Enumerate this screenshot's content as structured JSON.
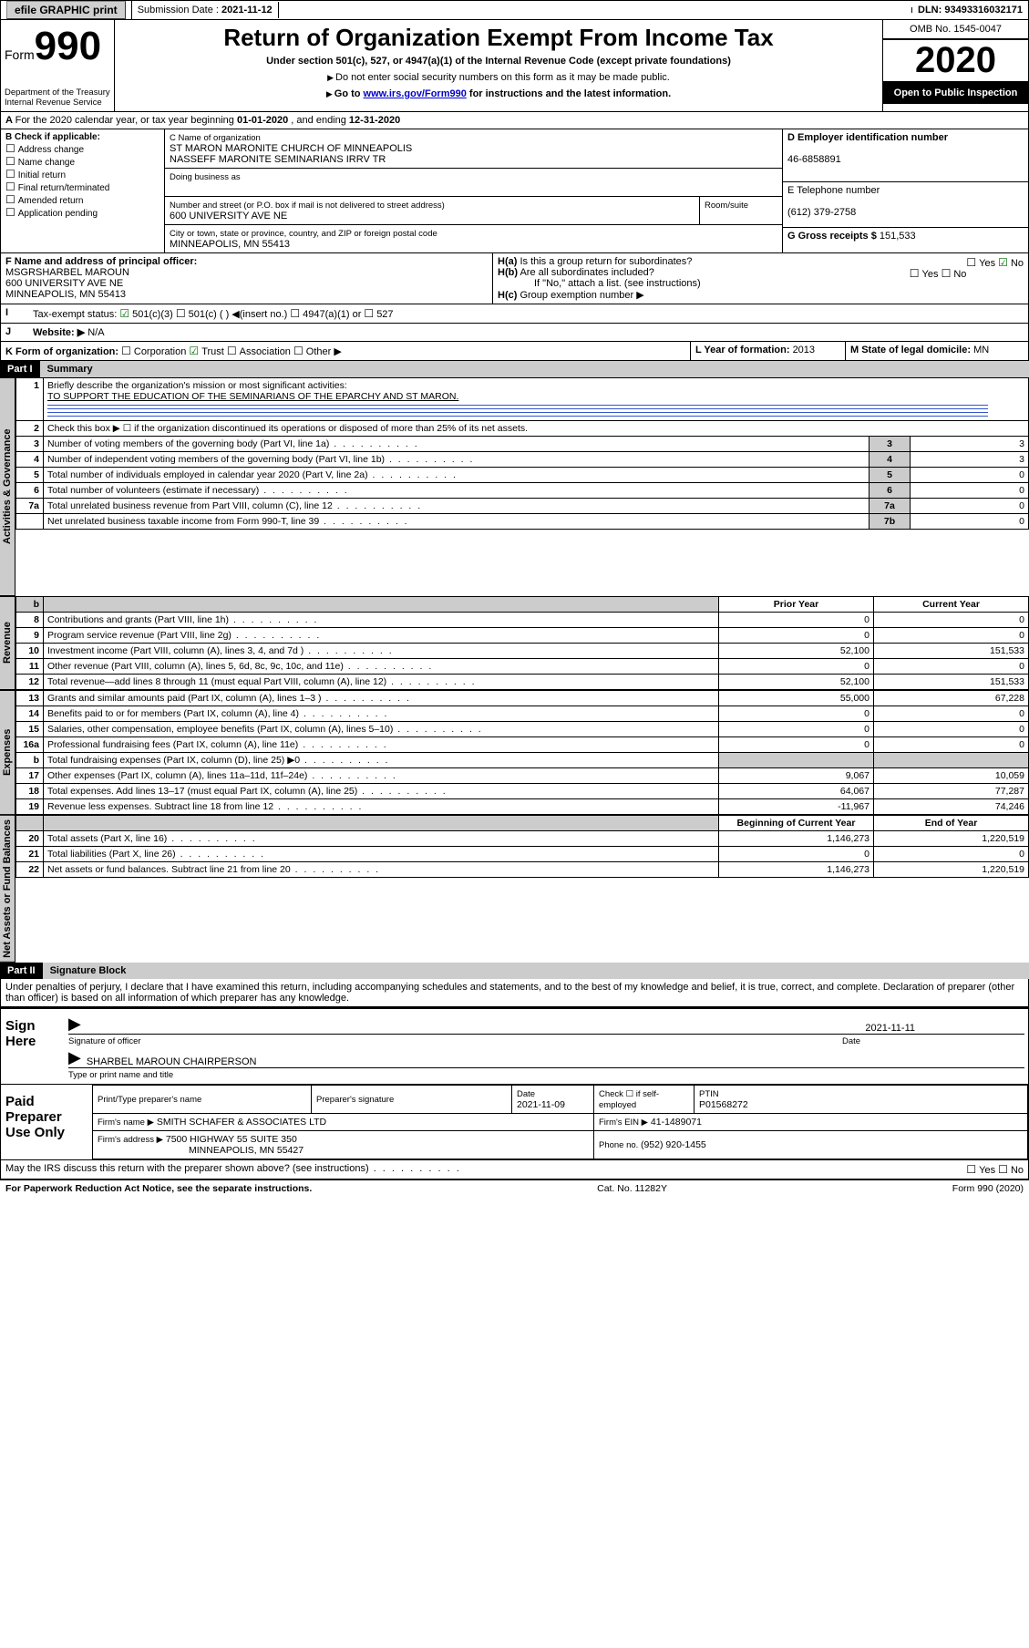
{
  "topbar": {
    "efile": "efile GRAPHIC print",
    "sub_label": "Submission Date : ",
    "sub_date": "2021-11-12",
    "dln_label": "DLN: ",
    "dln": "93493316032171"
  },
  "header": {
    "form_word": "Form",
    "form_num": "990",
    "dept1": "Department of the Treasury",
    "dept2": "Internal Revenue Service",
    "title": "Return of Organization Exempt From Income Tax",
    "sub1": "Under section 501(c), 527, or 4947(a)(1) of the Internal Revenue Code (except private foundations)",
    "sub2": "Do not enter social security numbers on this form as it may be made public.",
    "sub3a": "Go to ",
    "sub3_link": "www.irs.gov/Form990",
    "sub3b": " for instructions and the latest information.",
    "omb": "OMB No. 1545-0047",
    "year": "2020",
    "open": "Open to Public Inspection"
  },
  "line_a": {
    "text_a": "For the 2020 calendar year, or tax year beginning ",
    "begin": "01-01-2020",
    "text_b": " , and ending ",
    "end": "12-31-2020"
  },
  "box_b": {
    "title": "B Check if applicable:",
    "opts": [
      "Address change",
      "Name change",
      "Initial return",
      "Final return/terminated",
      "Amended return",
      "Application pending"
    ]
  },
  "box_c": {
    "label_name": "C Name of organization",
    "org1": "ST MARON MARONITE CHURCH OF MINNEAPOLIS",
    "org2": "NASSEFF MARONITE SEMINARIANS IRRV TR",
    "dba_label": "Doing business as",
    "addr_label": "Number and street (or P.O. box if mail is not delivered to street address)",
    "room_label": "Room/suite",
    "addr": "600 UNIVERSITY AVE NE",
    "city_label": "City or town, state or province, country, and ZIP or foreign postal code",
    "city": "MINNEAPOLIS, MN  55413"
  },
  "box_d": {
    "label": "D Employer identification number",
    "ein": "46-6858891"
  },
  "box_e": {
    "label": "E Telephone number",
    "phone": "(612) 379-2758"
  },
  "box_g": {
    "label": "G Gross receipts $ ",
    "amt": "151,533"
  },
  "box_f": {
    "label": "F Name and address of principal officer:",
    "l1": "MSGRSHARBEL MAROUN",
    "l2": "600 UNIVERSITY AVE NE",
    "l3": "MINNEAPOLIS, MN  55413"
  },
  "box_h": {
    "ha": "Is this a group return for subordinates?",
    "hb": "Are all subordinates included?",
    "hnote": "If \"No,\" attach a list. (see instructions)",
    "hc": "Group exemption number ▶",
    "yes": "Yes",
    "no": "No"
  },
  "box_i": {
    "label": "Tax-exempt status:",
    "o1": "501(c)(3)",
    "o2": "501(c) (  ) ◀(insert no.)",
    "o3": "4947(a)(1) or",
    "o4": "527"
  },
  "box_j": {
    "label": "Website: ▶",
    "val": "N/A"
  },
  "box_k": {
    "label": "K Form of organization:",
    "o1": "Corporation",
    "o2": "Trust",
    "o3": "Association",
    "o4": "Other ▶"
  },
  "box_l": {
    "label": "L Year of formation: ",
    "val": "2013"
  },
  "box_m": {
    "label": "M State of legal domicile: ",
    "val": "MN"
  },
  "part1": {
    "hdr": "Part I",
    "title": "Summary",
    "q1": "Briefly describe the organization's mission or most significant activities:",
    "q1ans": "TO SUPPORT THE EDUCATION OF THE SEMINARIANS OF THE EPARCHY AND ST MARON.",
    "q2": "Check this box ▶ ☐ if the organization discontinued its operations or disposed of more than 25% of its net assets.",
    "rows_gov": [
      {
        "n": "3",
        "d": "Number of voting members of the governing body (Part VI, line 1a)",
        "b": "3",
        "v": "3"
      },
      {
        "n": "4",
        "d": "Number of independent voting members of the governing body (Part VI, line 1b)",
        "b": "4",
        "v": "3"
      },
      {
        "n": "5",
        "d": "Total number of individuals employed in calendar year 2020 (Part V, line 2a)",
        "b": "5",
        "v": "0"
      },
      {
        "n": "6",
        "d": "Total number of volunteers (estimate if necessary)",
        "b": "6",
        "v": "0"
      },
      {
        "n": "7a",
        "d": "Total unrelated business revenue from Part VIII, column (C), line 12",
        "b": "7a",
        "v": "0"
      },
      {
        "n": "",
        "d": "Net unrelated business taxable income from Form 990-T, line 39",
        "b": "7b",
        "v": "0"
      }
    ],
    "col_py": "Prior Year",
    "col_cy": "Current Year",
    "rows_rev": [
      {
        "n": "8",
        "d": "Contributions and grants (Part VIII, line 1h)",
        "py": "0",
        "cy": "0"
      },
      {
        "n": "9",
        "d": "Program service revenue (Part VIII, line 2g)",
        "py": "0",
        "cy": "0"
      },
      {
        "n": "10",
        "d": "Investment income (Part VIII, column (A), lines 3, 4, and 7d )",
        "py": "52,100",
        "cy": "151,533"
      },
      {
        "n": "11",
        "d": "Other revenue (Part VIII, column (A), lines 5, 6d, 8c, 9c, 10c, and 11e)",
        "py": "0",
        "cy": "0"
      },
      {
        "n": "12",
        "d": "Total revenue—add lines 8 through 11 (must equal Part VIII, column (A), line 12)",
        "py": "52,100",
        "cy": "151,533"
      }
    ],
    "rows_exp": [
      {
        "n": "13",
        "d": "Grants and similar amounts paid (Part IX, column (A), lines 1–3 )",
        "py": "55,000",
        "cy": "67,228"
      },
      {
        "n": "14",
        "d": "Benefits paid to or for members (Part IX, column (A), line 4)",
        "py": "0",
        "cy": "0"
      },
      {
        "n": "15",
        "d": "Salaries, other compensation, employee benefits (Part IX, column (A), lines 5–10)",
        "py": "0",
        "cy": "0"
      },
      {
        "n": "16a",
        "d": "Professional fundraising fees (Part IX, column (A), line 11e)",
        "py": "0",
        "cy": "0"
      },
      {
        "n": "b",
        "d": "Total fundraising expenses (Part IX, column (D), line 25) ▶0",
        "py": "",
        "cy": ""
      },
      {
        "n": "17",
        "d": "Other expenses (Part IX, column (A), lines 11a–11d, 11f–24e)",
        "py": "9,067",
        "cy": "10,059"
      },
      {
        "n": "18",
        "d": "Total expenses. Add lines 13–17 (must equal Part IX, column (A), line 25)",
        "py": "64,067",
        "cy": "77,287"
      },
      {
        "n": "19",
        "d": "Revenue less expenses. Subtract line 18 from line 12",
        "py": "-11,967",
        "cy": "74,246"
      }
    ],
    "col_bcy": "Beginning of Current Year",
    "col_eoy": "End of Year",
    "rows_net": [
      {
        "n": "20",
        "d": "Total assets (Part X, line 16)",
        "py": "1,146,273",
        "cy": "1,220,519"
      },
      {
        "n": "21",
        "d": "Total liabilities (Part X, line 26)",
        "py": "0",
        "cy": "0"
      },
      {
        "n": "22",
        "d": "Net assets or fund balances. Subtract line 21 from line 20",
        "py": "1,146,273",
        "cy": "1,220,519"
      }
    ],
    "vlab_gov": "Activities & Governance",
    "vlab_rev": "Revenue",
    "vlab_exp": "Expenses",
    "vlab_net": "Net Assets or Fund Balances"
  },
  "part2": {
    "hdr": "Part II",
    "title": "Signature Block",
    "perjury": "Under penalties of perjury, I declare that I have examined this return, including accompanying schedules and statements, and to the best of my knowledge and belief, it is true, correct, and complete. Declaration of preparer (other than officer) is based on all information of which preparer has any knowledge.",
    "sign_here": "Sign Here",
    "sig_date": "2021-11-11",
    "sig_officer_lbl": "Signature of officer",
    "date_lbl": "Date",
    "officer_name": "SHARBEL MAROUN  CHAIRPERSON",
    "officer_type_lbl": "Type or print name and title",
    "paid": "Paid Preparer Use Only",
    "pp_name_lbl": "Print/Type preparer's name",
    "pp_sig_lbl": "Preparer's signature",
    "pp_date_lbl": "Date",
    "pp_date": "2021-11-09",
    "pp_check": "Check ☐ if self-employed",
    "ptin_lbl": "PTIN",
    "ptin": "P01568272",
    "firm_name_lbl": "Firm's name    ▶",
    "firm_name": "SMITH SCHAFER & ASSOCIATES LTD",
    "firm_ein_lbl": "Firm's EIN ▶",
    "firm_ein": "41-1489071",
    "firm_addr_lbl": "Firm's address ▶",
    "firm_addr1": "7500 HIGHWAY 55 SUITE 350",
    "firm_addr2": "MINNEAPOLIS, MN  55427",
    "firm_phone_lbl": "Phone no. ",
    "firm_phone": "(952) 920-1455",
    "discuss": "May the IRS discuss this return with the preparer shown above? (see instructions)"
  },
  "footer": {
    "l": "For Paperwork Reduction Act Notice, see the separate instructions.",
    "m": "Cat. No. 11282Y",
    "r": "Form 990 (2020)"
  }
}
